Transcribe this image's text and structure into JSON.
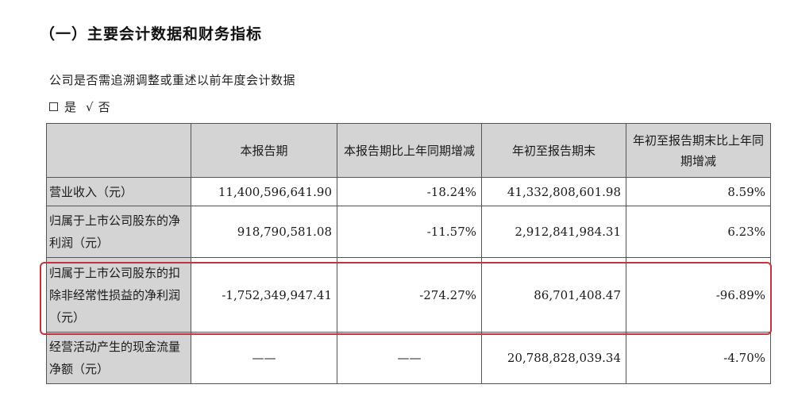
{
  "section_title": "（一）主要会计数据和财务指标",
  "question": "公司是否需追溯调整或重述以前年度会计数据",
  "options": {
    "yes_label": "是",
    "check_mark": "√",
    "no_label": "否"
  },
  "table": {
    "headers": [
      "",
      "本报告期",
      "本报告期比上年同期增减",
      "年初至报告期末",
      "年初至报告期末比上年同期增减"
    ],
    "rows": [
      {
        "label": "营业收入（元）",
        "cells": [
          "11,400,596,641.90",
          "-18.24%",
          "41,332,808,601.98",
          "8.59%"
        ]
      },
      {
        "label": "归属于上市公司股东的净利润（元）",
        "cells": [
          "918,790,581.08",
          "-11.57%",
          "2,912,841,984.31",
          "6.23%"
        ]
      },
      {
        "label": "归属于上市公司股东的扣除非经常性损益的净利润（元）",
        "cells": [
          "-1,752,349,947.41",
          "-274.27%",
          "86,701,408.47",
          "-96.89%"
        ]
      },
      {
        "label": "经营活动产生的现金流量净额（元）",
        "cells": [
          "——",
          "——",
          "20,788,828,039.34",
          "-4.70%"
        ]
      }
    ]
  },
  "highlight_color": "#c8323a"
}
